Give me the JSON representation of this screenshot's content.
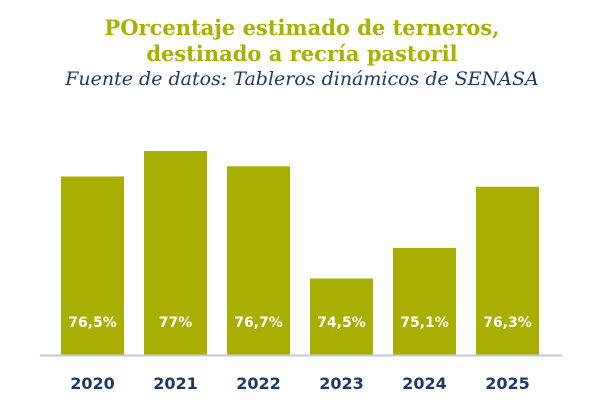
{
  "chart_data": {
    "type": "bar",
    "title": "POrcentaje estimado de terneros, destinado a recría pastoril",
    "title_lines": [
      "POrcentaje estimado de terneros,",
      "destinado a recría pastoril"
    ],
    "subtitle": "Fuente de datos: Tableros dinámicos de SENASA",
    "categories": [
      "2020",
      "2021",
      "2022",
      "2023",
      "2024",
      "2025"
    ],
    "values": [
      76.5,
      77,
      76.7,
      74.5,
      75.1,
      76.3
    ],
    "data_labels": [
      "76,5%",
      "77%",
      "76,7%",
      "74,5%",
      "75,1%",
      "76,3%"
    ],
    "xlabel": "",
    "ylabel": "",
    "ylim": [
      73,
      77
    ],
    "grid": false,
    "legend": "none",
    "colors": {
      "bar": "#a9af00",
      "title": "#a9b000",
      "subtitle": "#1c3a68",
      "axis": "#c5c8d8"
    }
  }
}
